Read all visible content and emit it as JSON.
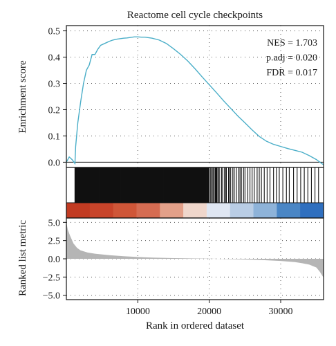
{
  "chart_data": {
    "type": "line",
    "title": "Reactome cell cycle checkpoints",
    "xlabel": "Rank in ordered dataset",
    "xlim": [
      0,
      36000
    ],
    "x_ticks": [
      {
        "value": 10000,
        "label": "10000"
      },
      {
        "value": 20000,
        "label": "20000"
      },
      {
        "value": 30000,
        "label": "30000"
      }
    ],
    "grid": true,
    "panels": {
      "enrichment": {
        "ylabel": "Enrichment score",
        "ylim": [
          -0.02,
          0.52
        ],
        "y_ticks": [
          {
            "value": 0.0,
            "label": "0.0"
          },
          {
            "value": 0.1,
            "label": "0.1"
          },
          {
            "value": 0.2,
            "label": "0.2"
          },
          {
            "value": 0.3,
            "label": "0.3"
          },
          {
            "value": 0.4,
            "label": "0.4"
          },
          {
            "value": 0.5,
            "label": "0.5"
          }
        ],
        "line_color": "#4aaec8",
        "series": [
          {
            "x": [
              0,
              400,
              800,
              1200,
              1300,
              1600,
              2000,
              2400,
              2800,
              3200,
              3600,
              4000,
              4400,
              4800,
              5200,
              5600,
              6000,
              6500,
              7000,
              7500,
              8000,
              8500,
              9000,
              9500,
              10000,
              10500,
              11000,
              11500,
              12000,
              13000,
              14000,
              15000,
              16000,
              17000,
              18000,
              19000,
              20000,
              21000,
              22000,
              23000,
              24000,
              25000,
              26000,
              27000,
              28000,
              29000,
              30000,
              31000,
              32000,
              33000,
              34000,
              35000,
              35500,
              36000
            ],
            "y": [
              0.0,
              0.02,
              0.01,
              -0.005,
              0.06,
              0.15,
              0.23,
              0.3,
              0.35,
              0.37,
              0.41,
              0.41,
              0.43,
              0.445,
              0.45,
              0.455,
              0.46,
              0.465,
              0.468,
              0.47,
              0.472,
              0.473,
              0.475,
              0.477,
              0.477,
              0.476,
              0.476,
              0.474,
              0.472,
              0.465,
              0.452,
              0.432,
              0.41,
              0.385,
              0.356,
              0.325,
              0.295,
              0.265,
              0.234,
              0.205,
              0.176,
              0.15,
              0.123,
              0.098,
              0.08,
              0.068,
              0.06,
              0.052,
              0.045,
              0.038,
              0.025,
              0.01,
              0.0,
              -0.01
            ]
          }
        ],
        "stats": [
          {
            "label": "NES = 1.703"
          },
          {
            "label": "p.adj = 0.020"
          },
          {
            "label": "FDR = 0.017"
          }
        ]
      },
      "hits": {
        "gene_positions": [
          1200,
          1250,
          1300,
          1350,
          1400,
          1450,
          1500,
          1550,
          1600,
          1650,
          1700,
          1750,
          1800,
          1850,
          1900,
          1950,
          2000,
          2050,
          2100,
          2150,
          2200,
          2250,
          2300,
          2350,
          2400,
          2450,
          2500,
          2550,
          2600,
          2650,
          2700,
          2750,
          2800,
          2850,
          2900,
          2950,
          3000,
          3050,
          3100,
          3150,
          3200,
          3250,
          3300,
          3350,
          3400,
          3450,
          3500,
          3550,
          3600,
          3650,
          3700,
          3750,
          3800,
          3850,
          3900,
          3950,
          4000,
          4050,
          4100,
          4150,
          4200,
          4250,
          4300,
          4350,
          4400,
          4450,
          4500,
          4550,
          4600,
          4650,
          4700,
          4750,
          4800,
          4850,
          4900,
          4950,
          5000,
          5050,
          5100,
          5150,
          5200,
          5250,
          5300,
          5350,
          5400,
          5450,
          5500,
          5550,
          5600,
          5650,
          5700,
          5750,
          5800,
          5850,
          5900,
          5950,
          6000,
          6050,
          6100,
          6150,
          6200,
          6250,
          6300,
          6350,
          6400,
          6450,
          6500,
          6550,
          6600,
          6650,
          6700,
          6750,
          6800,
          6850,
          6900,
          6950,
          7000,
          7050,
          7100,
          7150,
          7200,
          7250,
          7300,
          7350,
          7400,
          7450,
          7500,
          7550,
          7600,
          7650,
          7700,
          7750,
          7800,
          7850,
          7900,
          7950,
          8000,
          8050,
          8100,
          8150,
          8200,
          8250,
          8300,
          8350,
          8400,
          8450,
          8500,
          8550,
          8600,
          8650,
          8700,
          8750,
          8800,
          8850,
          8900,
          8950,
          9000,
          9050,
          9100,
          9150,
          9200,
          9250,
          9300,
          9350,
          9400,
          9450,
          9500,
          9550,
          9600,
          9650,
          9700,
          9750,
          9800,
          9850,
          9900,
          9950,
          10000,
          10050,
          10100,
          10150,
          10200,
          10250,
          10300,
          10350,
          10400,
          10450,
          10500,
          10550,
          10600,
          10650,
          10700,
          10750,
          10800,
          10850,
          10900,
          10950,
          11000,
          11050,
          11100,
          11150,
          11200,
          11250,
          11300,
          11350,
          11400,
          11450,
          11500,
          11550,
          11600,
          11650,
          11700,
          11750,
          11800,
          11850,
          11900,
          11950,
          12000,
          12050,
          12100,
          12150,
          12200,
          12250,
          12300,
          12350,
          12400,
          12450,
          12500,
          12550,
          12600,
          12650,
          12700,
          12750,
          12800,
          12850,
          12900,
          12950,
          13000,
          13050,
          13100,
          13150,
          13200,
          13250,
          13300,
          13350,
          13400,
          13450,
          13500,
          13550,
          13600,
          13650,
          13700,
          13750,
          13800,
          13850,
          13900,
          13950,
          14000,
          14050,
          14100,
          14150,
          14200,
          14250,
          14300,
          14350,
          14400,
          14450,
          14500,
          14550,
          14600,
          14650,
          14700,
          14750,
          14800,
          14850,
          14900,
          14950,
          15000,
          15050,
          15100,
          15150,
          15200,
          15250,
          15300,
          15350,
          15400,
          15450,
          15500,
          15550,
          15600,
          15650,
          15700,
          15750,
          15800,
          15850,
          15900,
          15950,
          16000,
          16050,
          16100,
          16150,
          16200,
          16250,
          16300,
          16350,
          16400,
          16450,
          16500,
          16550,
          16600,
          16650,
          16700,
          16750,
          16800,
          16850,
          16900,
          16950,
          17000,
          17050,
          17100,
          17150,
          17200,
          17250,
          17300,
          17350,
          17400,
          17450,
          17500,
          17550,
          17600,
          17650,
          17700,
          17750,
          17800,
          17850,
          17900,
          17950,
          18000,
          18050,
          18100,
          18150,
          18200,
          18250,
          18300,
          18350,
          18400,
          18450,
          18500,
          18550,
          18600,
          18650,
          18700,
          18750,
          18800,
          18850,
          18900,
          18950,
          19000,
          19050,
          19100,
          19150,
          19200,
          19250,
          19300,
          19350,
          19400,
          19450,
          19500,
          19550,
          19600,
          19650,
          19700,
          19750,
          19800,
          19850,
          19900,
          19950,
          20000,
          20200,
          20300,
          20500,
          20600,
          20800,
          20900,
          21000,
          21100,
          21300,
          21400,
          21700,
          21800,
          22100,
          22300,
          22400,
          22700,
          22800,
          23000,
          23300,
          23500,
          23800,
          24100,
          24300,
          24500,
          24800,
          25000,
          25400,
          25700,
          26000,
          26300,
          26700,
          27000,
          27300,
          27700,
          28100,
          28500,
          29000,
          29400,
          29800,
          30300,
          30800,
          31200,
          31800,
          32300,
          32800,
          33300,
          33800,
          34300,
          34800,
          35300
        ],
        "rank_colorbar": [
          "#c23b22",
          "#c8442a",
          "#cf5638",
          "#d56c52",
          "#e3a089",
          "#efd6cb",
          "#dfe6f2",
          "#b9cde5",
          "#8eb3d9",
          "#4a86c5",
          "#2f6fbf"
        ]
      },
      "metric": {
        "ylabel": "Ranked list metric",
        "ylim": [
          -5.6,
          5.6
        ],
        "y_ticks": [
          {
            "value": -5.0,
            "label": "−5.0"
          },
          {
            "value": -2.5,
            "label": "−2.5"
          },
          {
            "value": 0.0,
            "label": "0.0"
          },
          {
            "value": 2.5,
            "label": "2.5"
          },
          {
            "value": 5.0,
            "label": "5.0"
          }
        ],
        "fill_color": "#b5b5b5",
        "series": [
          {
            "x": [
              0,
              200,
              500,
              1000,
              1500,
              2000,
              3000,
              4000,
              6000,
              8000,
              10000,
              12000,
              15000,
              18000,
              20000,
              22000,
              24000,
              26000,
              28000,
              30000,
              32000,
              33000,
              34000,
              35000,
              35500,
              36000
            ],
            "y": [
              5.0,
              4.0,
              3.2,
              2.1,
              1.5,
              1.15,
              0.85,
              0.7,
              0.5,
              0.35,
              0.25,
              0.17,
              0.1,
              0.05,
              0.02,
              -0.02,
              -0.07,
              -0.12,
              -0.2,
              -0.3,
              -0.45,
              -0.6,
              -0.8,
              -1.2,
              -1.8,
              -2.6
            ]
          }
        ]
      }
    }
  }
}
